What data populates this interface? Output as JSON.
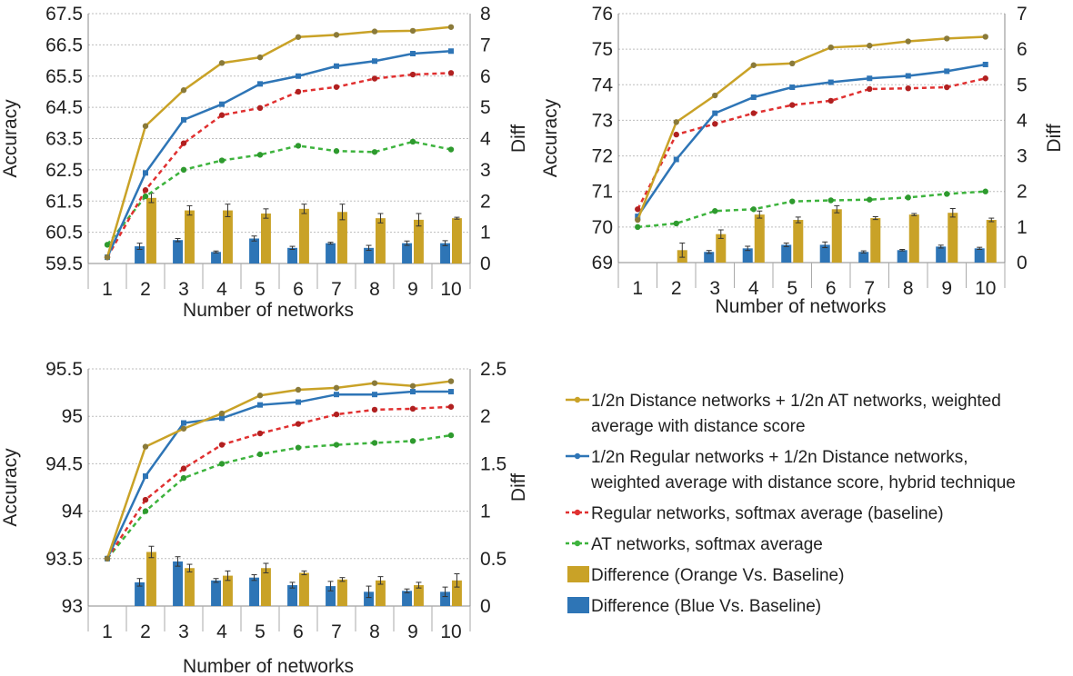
{
  "chart_data": [
    {
      "type": "line",
      "xlabel": "Number of networks",
      "ylabel": "Accuracy",
      "y2label": "Diff",
      "x": [
        1,
        2,
        3,
        4,
        5,
        6,
        7,
        8,
        9,
        10
      ],
      "ylim": [
        59.5,
        67.5
      ],
      "y_ticks": [
        "59.5",
        "60.5",
        "61.5",
        "62.5",
        "63.5",
        "64.5",
        "65.5",
        "66.5",
        "67.5"
      ],
      "y2lim": [
        0,
        8
      ],
      "y2_ticks": [
        "0",
        "1",
        "2",
        "3",
        "4",
        "5",
        "6",
        "7",
        "8"
      ],
      "series": [
        {
          "name": "1/2n Distance networks + 1/2n AT networks, weighted average with distance score",
          "values": [
            59.7,
            63.9,
            65.05,
            65.92,
            66.1,
            66.75,
            66.82,
            66.93,
            66.95,
            67.07
          ]
        },
        {
          "name": "1/2n Regular networks + 1/2n Distance networks, weighted average with distance score, hybrid technique",
          "values": [
            59.7,
            62.4,
            64.1,
            64.6,
            65.25,
            65.5,
            65.82,
            65.98,
            66.22,
            66.3
          ]
        },
        {
          "name": "Regular networks, softmax average (baseline)",
          "values": [
            59.7,
            61.85,
            63.35,
            64.25,
            64.48,
            65.0,
            65.15,
            65.42,
            65.55,
            65.6
          ]
        },
        {
          "name": "AT networks, softmax average",
          "values": [
            60.1,
            61.65,
            62.5,
            62.8,
            62.98,
            63.27,
            63.1,
            63.07,
            63.4,
            63.15
          ]
        }
      ],
      "bars": [
        {
          "name": "Difference (Orange Vs. Baseline)",
          "values": [
            null,
            2.1,
            1.7,
            1.7,
            1.6,
            1.75,
            1.65,
            1.45,
            1.4,
            1.45
          ],
          "errors": [
            null,
            0.15,
            0.15,
            0.2,
            0.15,
            0.15,
            0.25,
            0.15,
            0.2,
            0.03
          ]
        },
        {
          "name": "Difference (Blue Vs. Baseline)",
          "values": [
            null,
            0.55,
            0.75,
            0.37,
            0.8,
            0.5,
            0.65,
            0.5,
            0.65,
            0.65
          ],
          "errors": [
            null,
            0.1,
            0.05,
            0.03,
            0.08,
            0.05,
            0.03,
            0.08,
            0.07,
            0.08
          ]
        }
      ]
    },
    {
      "type": "line",
      "xlabel": "Number of networks",
      "ylabel": "Accuracy",
      "y2label": "Diff",
      "x": [
        1,
        2,
        3,
        4,
        5,
        6,
        7,
        8,
        9,
        10
      ],
      "ylim": [
        69,
        76
      ],
      "y_ticks": [
        "69",
        "70",
        "71",
        "72",
        "73",
        "74",
        "75",
        "76"
      ],
      "y2lim": [
        0,
        7
      ],
      "y2_ticks": [
        "0",
        "1",
        "2",
        "3",
        "4",
        "5",
        "6",
        "7"
      ],
      "series": [
        {
          "name": "1/2n Distance networks + 1/2n AT networks, weighted average with distance score",
          "values": [
            70.2,
            72.95,
            73.7,
            74.55,
            74.6,
            75.05,
            75.1,
            75.22,
            75.3,
            75.35
          ]
        },
        {
          "name": "1/2n Regular networks + 1/2n Distance networks, weighted average with distance score, hybrid technique",
          "values": [
            70.3,
            71.9,
            73.2,
            73.65,
            73.93,
            74.07,
            74.18,
            74.25,
            74.38,
            74.57
          ]
        },
        {
          "name": "Regular networks, softmax average (baseline)",
          "values": [
            70.5,
            72.6,
            72.9,
            73.2,
            73.43,
            73.55,
            73.88,
            73.9,
            73.93,
            74.18
          ]
        },
        {
          "name": "AT networks, softmax average",
          "values": [
            70.0,
            70.1,
            70.45,
            70.5,
            70.72,
            70.75,
            70.77,
            70.83,
            70.93,
            71.0
          ]
        }
      ],
      "bars": [
        {
          "name": "Difference (Orange Vs. Baseline)",
          "values": [
            null,
            0.35,
            0.8,
            1.35,
            1.2,
            1.5,
            1.25,
            1.35,
            1.4,
            1.2
          ],
          "errors": [
            null,
            0.2,
            0.12,
            0.1,
            0.08,
            0.1,
            0.04,
            0.03,
            0.12,
            0.05
          ]
        },
        {
          "name": "Difference (Blue Vs. Baseline)",
          "values": [
            null,
            null,
            0.3,
            0.4,
            0.5,
            0.5,
            0.3,
            0.35,
            0.45,
            0.4
          ],
          "errors": [
            null,
            null,
            0.04,
            0.06,
            0.05,
            0.08,
            0.03,
            0.02,
            0.04,
            0.03
          ]
        }
      ]
    },
    {
      "type": "line",
      "xlabel": "Number of networks",
      "ylabel": "Accuracy",
      "y2label": "Diff",
      "x": [
        1,
        2,
        3,
        4,
        5,
        6,
        7,
        8,
        9,
        10
      ],
      "ylim": [
        93,
        95.5
      ],
      "y_ticks": [
        "93",
        "93.5",
        "94",
        "94.5",
        "95",
        "95.5"
      ],
      "y2lim": [
        0,
        2.5
      ],
      "y2_ticks": [
        "0",
        "0.5",
        "1",
        "1.5",
        "2",
        "2.5"
      ],
      "series": [
        {
          "name": "1/2n Distance networks + 1/2n AT networks, weighted average with distance score",
          "values": [
            93.5,
            94.68,
            94.87,
            95.03,
            95.22,
            95.28,
            95.3,
            95.35,
            95.32,
            95.37
          ]
        },
        {
          "name": "1/2n Regular networks + 1/2n Distance networks, weighted average with distance score, hybrid technique",
          "values": [
            93.5,
            94.37,
            94.93,
            94.98,
            95.12,
            95.15,
            95.23,
            95.23,
            95.26,
            95.26
          ]
        },
        {
          "name": "Regular networks, softmax average (baseline)",
          "values": [
            93.5,
            94.12,
            94.45,
            94.7,
            94.82,
            94.92,
            95.02,
            95.07,
            95.08,
            95.1
          ]
        },
        {
          "name": "AT networks, softmax average",
          "values": [
            93.5,
            94.0,
            94.35,
            94.5,
            94.6,
            94.67,
            94.7,
            94.72,
            94.74,
            94.8
          ]
        }
      ],
      "bars": [
        {
          "name": "Difference (Orange Vs. Baseline)",
          "values": [
            null,
            0.57,
            0.4,
            0.32,
            0.4,
            0.35,
            0.28,
            0.27,
            0.22,
            0.27
          ],
          "errors": [
            null,
            0.06,
            0.04,
            0.05,
            0.05,
            0.02,
            0.02,
            0.04,
            0.03,
            0.07
          ]
        },
        {
          "name": "Difference (Blue Vs. Baseline)",
          "values": [
            null,
            0.25,
            0.47,
            0.27,
            0.3,
            0.22,
            0.21,
            0.15,
            0.16,
            0.15
          ],
          "errors": [
            null,
            0.04,
            0.05,
            0.02,
            0.03,
            0.03,
            0.05,
            0.06,
            0.02,
            0.05
          ]
        }
      ]
    }
  ],
  "legend": {
    "items": [
      {
        "label": "1/2n Distance networks + 1/2n AT networks, weighted",
        "label2": "average with distance score",
        "kind": "line",
        "color": "#C9A227",
        "dash": false
      },
      {
        "label": "1/2n Regular networks + 1/2n Distance networks,",
        "label2": "weighted average with distance score, hybrid technique",
        "kind": "line",
        "color": "#2E75B6",
        "dash": false
      },
      {
        "label": "Regular networks, softmax average (baseline)",
        "label2": "",
        "kind": "line",
        "color": "#E03030",
        "dash": true
      },
      {
        "label": "AT networks, softmax average",
        "label2": "",
        "kind": "line",
        "color": "#3DB33D",
        "dash": true
      },
      {
        "label": "Difference (Orange Vs. Baseline)",
        "label2": "",
        "kind": "bar",
        "color": "#C9A227",
        "dash": false
      },
      {
        "label": "Difference (Blue Vs. Baseline)",
        "label2": "",
        "kind": "bar",
        "color": "#2E75B6",
        "dash": false
      }
    ]
  },
  "colors": {
    "orange": "#C9A227",
    "blue": "#2E75B6",
    "red": "#E03030",
    "green": "#3DB33D",
    "orange_marker": "#8A7A3A",
    "blue_marker": "#2E75B6",
    "red_marker": "#B02020",
    "green_marker": "#2E9A2E"
  }
}
